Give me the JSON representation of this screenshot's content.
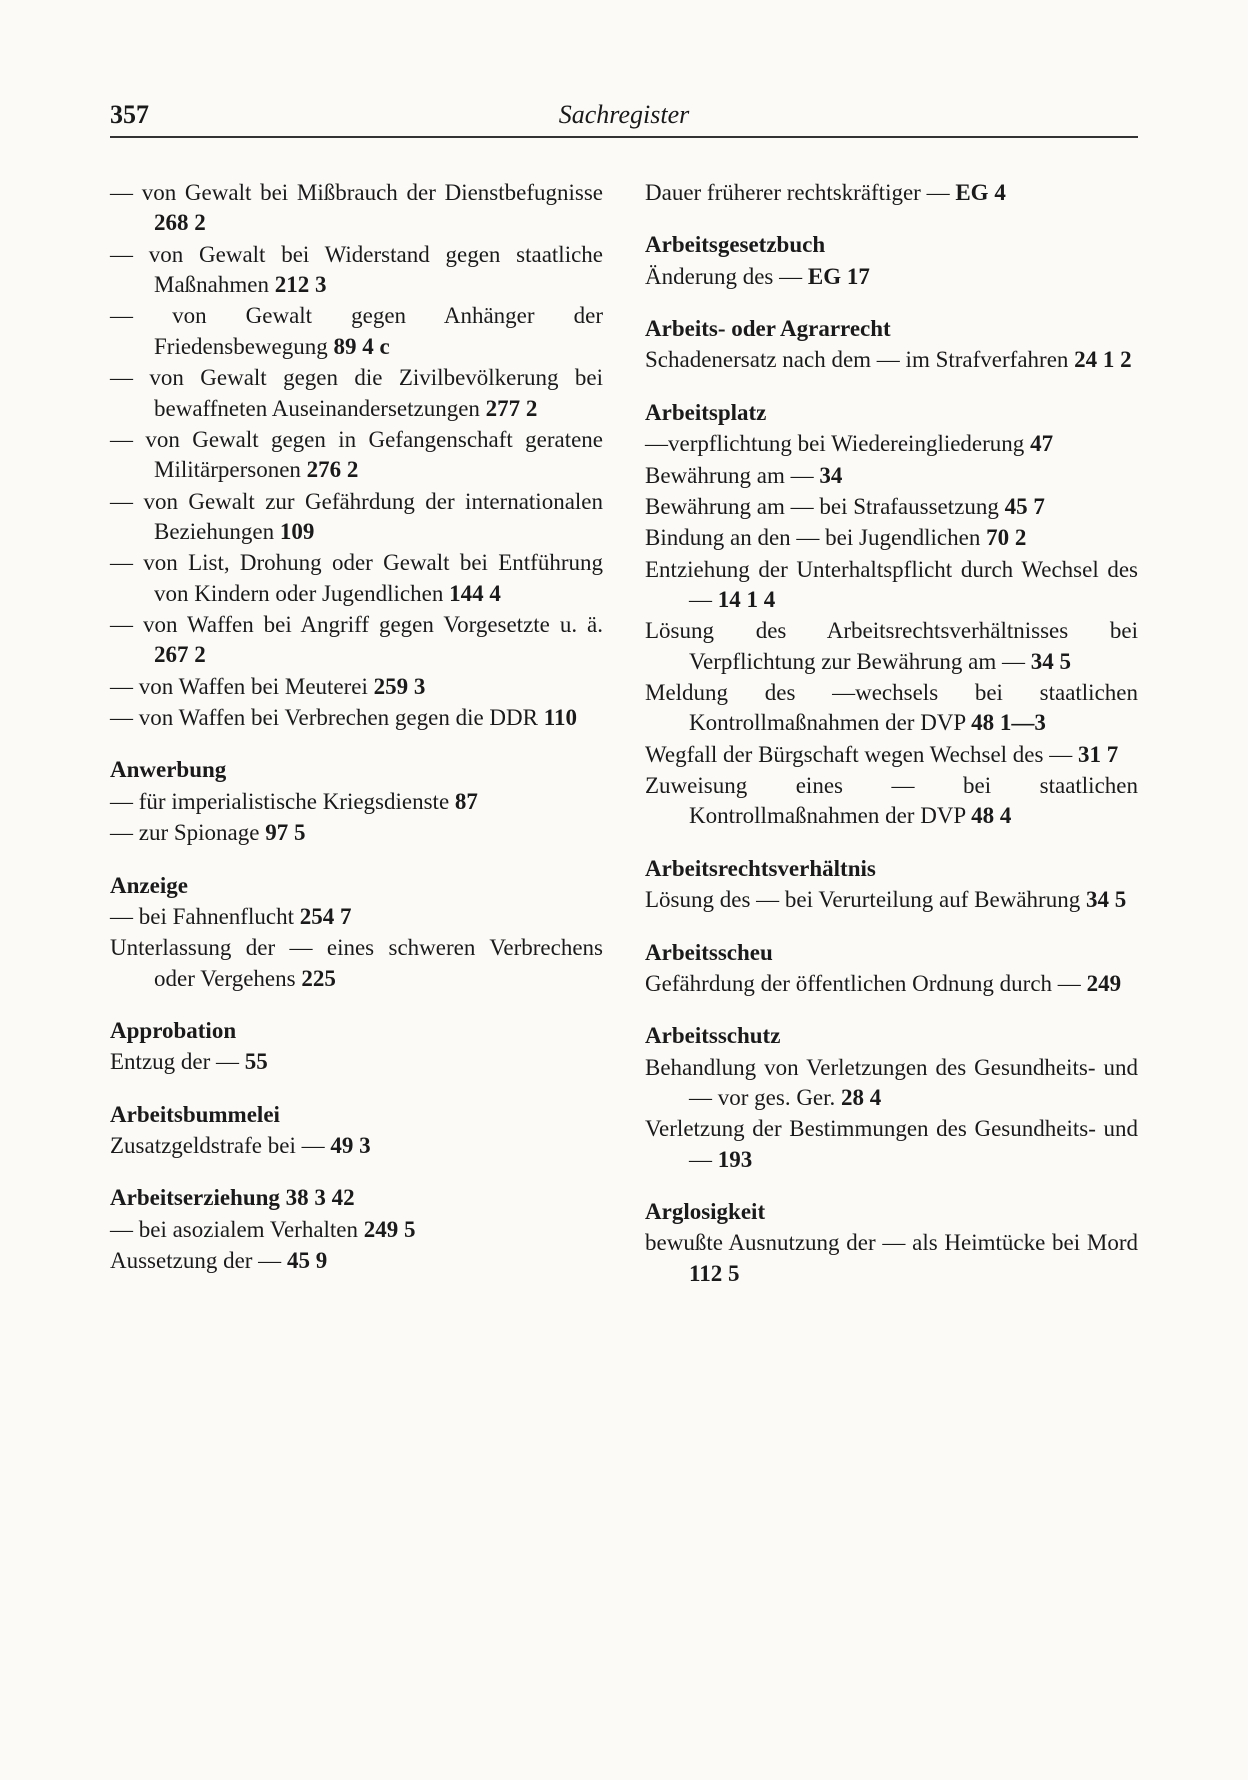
{
  "page_number": "357",
  "header_title": "Sachregister",
  "left": {
    "sections": [
      {
        "heading": null,
        "entries": [
          {
            "dash": true,
            "text": "von Gewalt bei Mißbrauch der Dienstbefugnisse",
            "refs": "268 2"
          },
          {
            "dash": true,
            "text": "von Gewalt bei Widerstand gegen staatliche Maßnahmen",
            "refs": "212 3"
          },
          {
            "dash": true,
            "text": "von Gewalt gegen Anhänger der Friedensbewegung",
            "refs": "89 4 c"
          },
          {
            "dash": true,
            "text": "von Gewalt gegen die Zivilbevölkerung bei bewaffneten Auseinandersetzungen",
            "refs": "277 2"
          },
          {
            "dash": true,
            "text": "von Gewalt gegen in Gefangenschaft geratene Militärpersonen",
            "refs": "276 2"
          },
          {
            "dash": true,
            "text": "von Gewalt zur Gefährdung der internationalen Beziehungen",
            "refs": "109"
          },
          {
            "dash": true,
            "text": "von List, Drohung oder Gewalt bei Entführung von Kindern oder Jugendlichen",
            "refs": "144 4"
          },
          {
            "dash": true,
            "text": "von Waffen bei Angriff gegen Vorgesetzte u. ä.",
            "refs": "267 2"
          },
          {
            "dash": true,
            "text": "von Waffen bei Meuterei",
            "refs": "259 3"
          },
          {
            "dash": true,
            "text": "von Waffen bei Verbrechen gegen die DDR",
            "refs": "110"
          }
        ]
      },
      {
        "heading": "Anwerbung",
        "entries": [
          {
            "dash": true,
            "text": "für imperialistische Kriegsdienste",
            "refs": "87"
          },
          {
            "dash": true,
            "text": "zur Spionage",
            "refs": "97 5"
          }
        ]
      },
      {
        "heading": "Anzeige",
        "entries": [
          {
            "dash": true,
            "text": "bei Fahnenflucht",
            "refs": "254 7"
          },
          {
            "dash": false,
            "text": "Unterlassung der — eines schweren Verbrechens oder Vergehens",
            "refs": "225"
          }
        ]
      },
      {
        "heading": "Approbation",
        "entries": [
          {
            "dash": false,
            "text": "Entzug der —",
            "refs": "55"
          }
        ]
      },
      {
        "heading": "Arbeitsbummelei",
        "entries": [
          {
            "dash": false,
            "text": "Zusatzgeldstrafe bei —",
            "refs": "49 3"
          }
        ]
      },
      {
        "heading": "Arbeitserziehung",
        "heading_refs": "38 3  42",
        "entries": [
          {
            "dash": true,
            "text": "bei asozialem Verhalten",
            "refs": "249 5"
          },
          {
            "dash": false,
            "text": "Aussetzung der —",
            "refs": "45 9"
          }
        ]
      }
    ]
  },
  "right": {
    "sections": [
      {
        "heading": null,
        "entries": [
          {
            "dash": false,
            "text": "Dauer früherer rechtskräftiger —",
            "refs": "EG 4"
          }
        ]
      },
      {
        "heading": "Arbeitsgesetzbuch",
        "entries": [
          {
            "dash": false,
            "text": "Änderung des —",
            "refs": "EG 17"
          }
        ]
      },
      {
        "heading": "Arbeits- oder Agrarrecht",
        "entries": [
          {
            "dash": false,
            "text": "Schadenersatz nach dem — im Strafverfahren",
            "refs": "24 1 2"
          }
        ]
      },
      {
        "heading": "Arbeitsplatz",
        "entries": [
          {
            "dash": false,
            "text": "—verpflichtung bei Wiedereingliederung",
            "refs": "47"
          },
          {
            "dash": false,
            "text": "Bewährung am —",
            "refs": "34"
          },
          {
            "dash": false,
            "text": "Bewährung am — bei Strafaussetzung",
            "refs": "45 7"
          },
          {
            "dash": false,
            "text": "Bindung an den — bei Jugendlichen",
            "refs": "70 2"
          },
          {
            "dash": false,
            "text": "Entziehung der Unterhaltspflicht durch Wechsel des —",
            "refs": "14  1 4"
          },
          {
            "dash": false,
            "text": "Lösung des Arbeitsrechtsverhältnisses bei Verpflichtung zur Bewährung am —",
            "refs": "34 5"
          },
          {
            "dash": false,
            "text": "Meldung des —wechsels bei staatlichen Kontrollmaßnahmen der DVP",
            "refs": "48 1—3"
          },
          {
            "dash": false,
            "text": "Wegfall der Bürgschaft wegen Wechsel des —",
            "refs": "31 7"
          },
          {
            "dash": false,
            "text": "Zuweisung eines — bei staatlichen Kontrollmaßnahmen der DVP",
            "refs": "48 4"
          }
        ]
      },
      {
        "heading": "Arbeitsrechtsverhältnis",
        "entries": [
          {
            "dash": false,
            "text": "Lösung des — bei Verurteilung auf Bewährung",
            "refs": "34 5"
          }
        ]
      },
      {
        "heading": "Arbeitsscheu",
        "entries": [
          {
            "dash": false,
            "text": "Gefährdung der öffentlichen Ordnung durch —",
            "refs": "249"
          }
        ]
      },
      {
        "heading": "Arbeitsschutz",
        "entries": [
          {
            "dash": false,
            "text": "Behandlung von Verletzungen des Gesundheits- und — vor ges. Ger.",
            "refs": "28 4"
          },
          {
            "dash": false,
            "text": "Verletzung der Bestimmungen des Gesundheits- und —",
            "refs": "193"
          }
        ]
      },
      {
        "heading": "Arglosigkeit",
        "entries": [
          {
            "dash": false,
            "text": "bewußte Ausnutzung der — als Heimtücke bei Mord",
            "refs": "112 5"
          }
        ]
      }
    ]
  }
}
